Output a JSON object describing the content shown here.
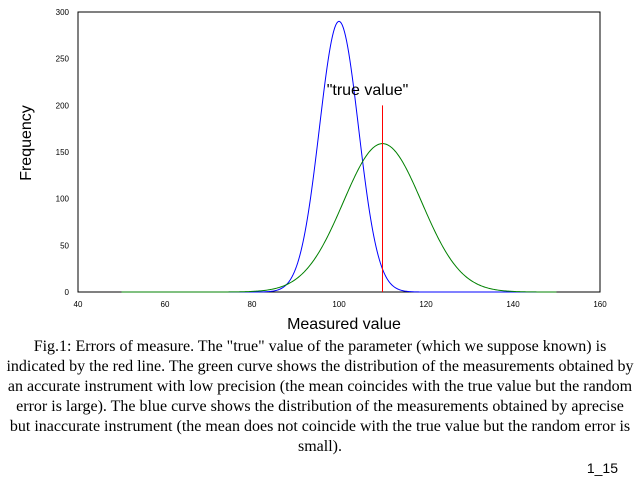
{
  "chart_data": {
    "type": "line",
    "title": "",
    "xlabel": "Measured value",
    "ylabel": "Frequency",
    "xlim": [
      40,
      160
    ],
    "ylim": [
      0,
      300
    ],
    "xticks": [
      40,
      60,
      80,
      100,
      120,
      140,
      160
    ],
    "yticks": [
      0,
      50,
      100,
      150,
      200,
      250,
      300
    ],
    "grid": false,
    "series": [
      {
        "color": "#0000ff",
        "distribution": "normal",
        "mean": 100,
        "sd": 4.5,
        "peak": 290,
        "x": [
          85,
          90,
          95,
          97,
          100,
          103,
          105,
          110,
          115
        ],
        "y": [
          1,
          24,
          157,
          231,
          290,
          231,
          157,
          24,
          1
        ]
      },
      {
        "color": "#008000",
        "distribution": "normal",
        "mean": 110,
        "sd": 9,
        "peak": 159,
        "x": [
          80,
          90,
          95,
          100,
          105,
          110,
          115,
          120,
          125,
          130,
          140
        ],
        "y": [
          1,
          13,
          39,
          85,
          136,
          159,
          136,
          85,
          39,
          13,
          1
        ]
      }
    ],
    "annotations": [
      {
        "text": "\"true value\"",
        "x": 110,
        "y_from": 0,
        "y_to": 200,
        "color": "#ff0000"
      }
    ]
  },
  "caption": "Fig.1: Errors of measure. The \"true\" value of the parameter (which we suppose known) is indicated by the red line. The green curve shows the distribution of the measurements obtained by an accurate instrument with low precision (the mean coincides with the true value but the random error is large). The blue curve shows the distribution of the measurements obtained by aprecise but inaccurate instrument (the mean does not coincide with the true value but the random error is small).",
  "figure_id": "1_15"
}
